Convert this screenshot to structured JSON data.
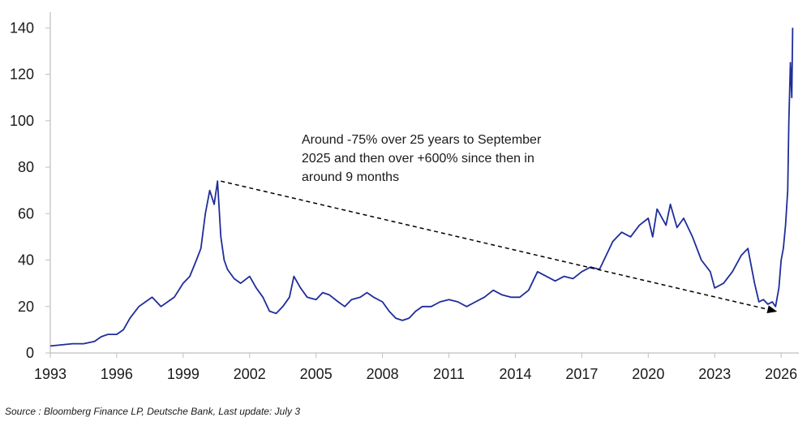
{
  "chart_data": {
    "type": "line",
    "title": "",
    "xlabel": "",
    "ylabel": "",
    "xlim": [
      1993,
      2026.8
    ],
    "ylim": [
      0,
      145
    ],
    "x_ticks": [
      1993,
      1996,
      1999,
      2002,
      2005,
      2008,
      2011,
      2014,
      2017,
      2020,
      2023,
      2026
    ],
    "y_ticks": [
      0,
      20,
      40,
      60,
      80,
      100,
      120,
      140
    ],
    "grid": false,
    "legend": "none",
    "series": [
      {
        "color": "#1f2d9a",
        "x": [
          1993.0,
          1993.5,
          1994.0,
          1994.5,
          1995.0,
          1995.3,
          1995.6,
          1996.0,
          1996.3,
          1996.6,
          1997.0,
          1997.3,
          1997.6,
          1998.0,
          1998.3,
          1998.6,
          1999.0,
          1999.3,
          1999.6,
          1999.8,
          2000.0,
          2000.2,
          2000.4,
          2000.55,
          2000.7,
          2000.85,
          2001.0,
          2001.3,
          2001.6,
          2002.0,
          2002.3,
          2002.6,
          2002.9,
          2003.2,
          2003.5,
          2003.8,
          2004.0,
          2004.3,
          2004.6,
          2005.0,
          2005.3,
          2005.6,
          2006.0,
          2006.3,
          2006.6,
          2007.0,
          2007.3,
          2007.6,
          2008.0,
          2008.3,
          2008.6,
          2008.9,
          2009.2,
          2009.5,
          2009.8,
          2010.2,
          2010.6,
          2011.0,
          2011.4,
          2011.8,
          2012.2,
          2012.6,
          2013.0,
          2013.4,
          2013.8,
          2014.2,
          2014.6,
          2015.0,
          2015.4,
          2015.8,
          2016.2,
          2016.6,
          2017.0,
          2017.4,
          2017.8,
          2018.0,
          2018.4,
          2018.8,
          2019.2,
          2019.6,
          2020.0,
          2020.2,
          2020.4,
          2020.8,
          2021.0,
          2021.3,
          2021.6,
          2022.0,
          2022.4,
          2022.8,
          2023.0,
          2023.4,
          2023.8,
          2024.2,
          2024.5,
          2024.8,
          2025.0,
          2025.2,
          2025.4,
          2025.6,
          2025.75,
          2025.9,
          2026.0,
          2026.1,
          2026.2,
          2026.3,
          2026.35,
          2026.42,
          2026.48,
          2026.52
        ],
        "values": [
          3,
          3.5,
          4,
          4,
          5,
          7,
          8,
          8,
          10,
          15,
          20,
          22,
          24,
          20,
          22,
          24,
          30,
          33,
          40,
          45,
          60,
          70,
          64,
          74,
          50,
          40,
          36,
          32,
          30,
          33,
          28,
          24,
          18,
          17,
          20,
          24,
          33,
          28,
          24,
          23,
          26,
          25,
          22,
          20,
          23,
          24,
          26,
          24,
          22,
          18,
          15,
          14,
          15,
          18,
          20,
          20,
          22,
          23,
          22,
          20,
          22,
          24,
          27,
          25,
          24,
          24,
          27,
          35,
          33,
          31,
          33,
          32,
          35,
          37,
          36,
          40,
          48,
          52,
          50,
          55,
          58,
          50,
          62,
          55,
          64,
          54,
          58,
          50,
          40,
          35,
          28,
          30,
          35,
          42,
          45,
          30,
          22,
          23,
          21,
          22,
          20,
          28,
          40,
          45,
          55,
          70,
          100,
          125,
          110,
          140
        ]
      }
    ],
    "annotations": [
      {
        "lines": [
          "Around -75% over 25 years to September",
          "2025 and then over +600% since then in",
          "around 9 months"
        ],
        "arrow_from": [
          2000.7,
          74
        ],
        "arrow_to": [
          2025.75,
          18
        ]
      }
    ]
  },
  "source": "Source : Bloomberg Finance LP, Deutsche Bank, Last update: July 3"
}
